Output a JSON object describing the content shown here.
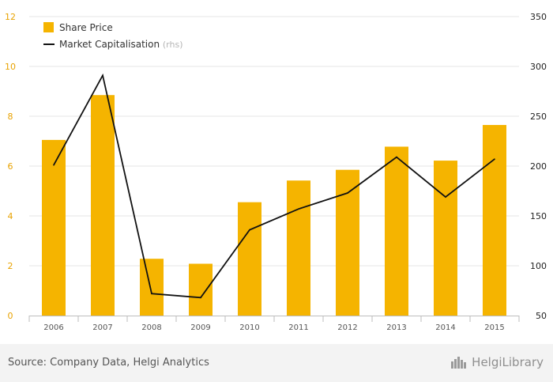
{
  "chart_data": {
    "type": "bar",
    "categories": [
      "2006",
      "2007",
      "2008",
      "2009",
      "2010",
      "2011",
      "2012",
      "2013",
      "2014",
      "2015"
    ],
    "series": [
      {
        "name": "Share Price",
        "type": "bar",
        "axis": "left",
        "color": "#f5b400",
        "values": [
          7.05,
          8.85,
          2.28,
          2.08,
          4.55,
          5.42,
          5.85,
          6.78,
          6.22,
          7.65
        ]
      },
      {
        "name": "Market Capitalisation",
        "name_suffix": "(rhs)",
        "type": "line",
        "axis": "right",
        "color": "#111111",
        "values": [
          201,
          291,
          72,
          68,
          136,
          157,
          173,
          209,
          169,
          207
        ]
      }
    ],
    "y_left": {
      "ticks": [
        "0",
        "2",
        "4",
        "6",
        "8",
        "10",
        "12"
      ],
      "lim": [
        0,
        12
      ],
      "color": "#e8a200"
    },
    "y_right": {
      "ticks": [
        "50",
        "100",
        "150",
        "200",
        "250",
        "300",
        "350"
      ],
      "lim": [
        50,
        350
      ],
      "color": "#222222"
    },
    "grid": true,
    "legend_position": "top-left"
  },
  "footer": {
    "source": "Source: Company Data, Helgi Analytics",
    "brand": "HelgiLibrary"
  }
}
